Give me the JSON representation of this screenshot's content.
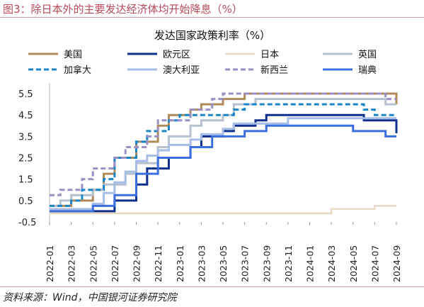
{
  "figure_title": "图3：除日本外的主要发达经济体均开始降息（%）",
  "source": "资料来源：Wind，中国银河证券研究院",
  "chart_data": {
    "type": "line",
    "step": true,
    "title": "发达国家政策利率（%）",
    "xlabel": "",
    "ylabel": "",
    "ylim": [
      -0.5,
      5.8
    ],
    "yticks": [
      5.5,
      4.5,
      3.5,
      2.5,
      1.5,
      0.5,
      -0.5
    ],
    "x_range": [
      "2022-01",
      "2024-09"
    ],
    "xticks": [
      "2022-01",
      "2022-03",
      "2022-05",
      "2022-07",
      "2022-09",
      "2022-11",
      "2023-01",
      "2023-03",
      "2023-05",
      "2023-07",
      "2023-09",
      "2023-11",
      "2024-01",
      "2024-03",
      "2024-05",
      "2024-07",
      "2024-09"
    ],
    "legend_position": "top",
    "series": [
      {
        "name": "美国",
        "color": "#b08b5a",
        "dash": "solid",
        "width": 3,
        "points": [
          [
            "2022-01",
            0.25
          ],
          [
            "2022-03",
            0.5
          ],
          [
            "2022-05",
            1.0
          ],
          [
            "2022-06",
            1.75
          ],
          [
            "2022-07",
            2.5
          ],
          [
            "2022-09",
            3.25
          ],
          [
            "2022-11",
            4.0
          ],
          [
            "2022-12",
            4.5
          ],
          [
            "2023-02",
            4.75
          ],
          [
            "2023-03",
            5.0
          ],
          [
            "2023-05",
            5.25
          ],
          [
            "2023-07",
            5.5
          ],
          [
            "2024-09",
            5.0
          ]
        ]
      },
      {
        "name": "欧元区",
        "color": "#0e2f8c",
        "dash": "solid",
        "width": 3,
        "points": [
          [
            "2022-01",
            0.0
          ],
          [
            "2022-07",
            0.5
          ],
          [
            "2022-09",
            1.25
          ],
          [
            "2022-10",
            2.0
          ],
          [
            "2022-12",
            2.5
          ],
          [
            "2023-02",
            3.0
          ],
          [
            "2023-03",
            3.5
          ],
          [
            "2023-05",
            3.75
          ],
          [
            "2023-06",
            4.0
          ],
          [
            "2023-08",
            4.25
          ],
          [
            "2023-09",
            4.5
          ],
          [
            "2024-06",
            4.25
          ],
          [
            "2024-09",
            3.65
          ]
        ]
      },
      {
        "name": "日本",
        "color": "#e8d9c4",
        "dash": "solid",
        "width": 2.5,
        "points": [
          [
            "2022-01",
            -0.1
          ],
          [
            "2024-03",
            0.1
          ],
          [
            "2024-07",
            0.25
          ]
        ]
      },
      {
        "name": "英国",
        "color": "#b7c0cf",
        "dash": "solid",
        "width": 3,
        "points": [
          [
            "2022-01",
            0.25
          ],
          [
            "2022-02",
            0.5
          ],
          [
            "2022-03",
            0.75
          ],
          [
            "2022-05",
            1.0
          ],
          [
            "2022-06",
            1.25
          ],
          [
            "2022-08",
            1.75
          ],
          [
            "2022-09",
            2.25
          ],
          [
            "2022-11",
            3.0
          ],
          [
            "2022-12",
            3.5
          ],
          [
            "2023-02",
            4.0
          ],
          [
            "2023-03",
            4.25
          ],
          [
            "2023-05",
            4.5
          ],
          [
            "2023-06",
            5.0
          ],
          [
            "2023-08",
            5.25
          ],
          [
            "2024-08",
            5.0
          ]
        ]
      },
      {
        "name": "加拿大",
        "color": "#1a86c8",
        "dash": "dashed",
        "width": 3,
        "points": [
          [
            "2022-01",
            0.25
          ],
          [
            "2022-03",
            0.5
          ],
          [
            "2022-04",
            1.0
          ],
          [
            "2022-06",
            1.5
          ],
          [
            "2022-07",
            2.5
          ],
          [
            "2022-09",
            3.25
          ],
          [
            "2022-10",
            3.75
          ],
          [
            "2022-12",
            4.25
          ],
          [
            "2023-01",
            4.5
          ],
          [
            "2023-06",
            4.75
          ],
          [
            "2023-07",
            5.0
          ],
          [
            "2024-06",
            4.75
          ],
          [
            "2024-07",
            4.5
          ]
        ]
      },
      {
        "name": "澳大利亚",
        "color": "#a6bde8",
        "dash": "solid",
        "width": 3,
        "points": [
          [
            "2022-01",
            0.1
          ],
          [
            "2022-05",
            0.35
          ],
          [
            "2022-06",
            0.85
          ],
          [
            "2022-07",
            1.35
          ],
          [
            "2022-08",
            1.85
          ],
          [
            "2022-09",
            2.35
          ],
          [
            "2022-10",
            2.6
          ],
          [
            "2022-11",
            2.85
          ],
          [
            "2022-12",
            3.1
          ],
          [
            "2023-02",
            3.35
          ],
          [
            "2023-03",
            3.6
          ],
          [
            "2023-05",
            3.85
          ],
          [
            "2023-06",
            4.1
          ],
          [
            "2023-11",
            4.35
          ]
        ]
      },
      {
        "name": "新西兰",
        "color": "#9b8fc6",
        "dash": "dashed",
        "width": 3,
        "points": [
          [
            "2022-01",
            0.75
          ],
          [
            "2022-02",
            1.0
          ],
          [
            "2022-04",
            1.5
          ],
          [
            "2022-05",
            2.0
          ],
          [
            "2022-07",
            2.5
          ],
          [
            "2022-08",
            3.0
          ],
          [
            "2022-10",
            3.5
          ],
          [
            "2022-11",
            4.25
          ],
          [
            "2023-02",
            4.75
          ],
          [
            "2023-04",
            5.25
          ],
          [
            "2023-05",
            5.5
          ],
          [
            "2024-08",
            5.25
          ]
        ]
      },
      {
        "name": "瑞典",
        "color": "#3b6fe0",
        "dash": "solid",
        "width": 3,
        "points": [
          [
            "2022-01",
            0.0
          ],
          [
            "2022-05",
            0.25
          ],
          [
            "2022-07",
            0.75
          ],
          [
            "2022-09",
            1.75
          ],
          [
            "2022-11",
            2.5
          ],
          [
            "2023-02",
            3.0
          ],
          [
            "2023-04",
            3.5
          ],
          [
            "2023-07",
            3.75
          ],
          [
            "2023-09",
            4.0
          ],
          [
            "2024-05",
            3.75
          ],
          [
            "2024-08",
            3.5
          ]
        ]
      }
    ]
  }
}
